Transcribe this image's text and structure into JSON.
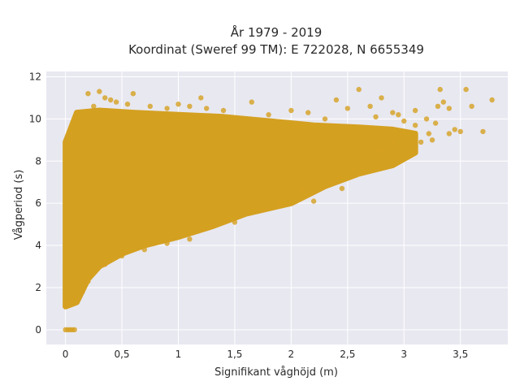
{
  "chart_data": {
    "type": "scatter",
    "title_lines": [
      "År 1979 - 2019",
      "Koordinat (Sweref 99 TM): E 722028, N 6655349"
    ],
    "xlabel": "Signifikant våghöjd (m)",
    "ylabel": "Vågperiod (s)",
    "xlim": [
      -0.17,
      3.92
    ],
    "ylim": [
      -0.7,
      12.25
    ],
    "x_ticks": [
      {
        "value": 0,
        "label": "0"
      },
      {
        "value": 0.5,
        "label": "0,5"
      },
      {
        "value": 1,
        "label": "1"
      },
      {
        "value": 1.5,
        "label": "1,5"
      },
      {
        "value": 2,
        "label": "2"
      },
      {
        "value": 2.5,
        "label": "2,5"
      },
      {
        "value": 3,
        "label": "3"
      },
      {
        "value": 3.5,
        "label": "3,5"
      }
    ],
    "y_ticks": [
      {
        "value": 0,
        "label": "0"
      },
      {
        "value": 2,
        "label": "2"
      },
      {
        "value": 4,
        "label": "4"
      },
      {
        "value": 6,
        "label": "6"
      },
      {
        "value": 8,
        "label": "8"
      },
      {
        "value": 10,
        "label": "10"
      },
      {
        "value": 12,
        "label": "12"
      }
    ],
    "grid": true,
    "colors": {
      "marker": "#d4a020",
      "plot_bg": "#e8e8f1",
      "grid": "#ffffff"
    },
    "density_region": {
      "comment_free": true,
      "lower_bound": [
        [
          0.0,
          1.1
        ],
        [
          0.1,
          1.3
        ],
        [
          0.2,
          2.4
        ],
        [
          0.3,
          3.0
        ],
        [
          0.5,
          3.6
        ],
        [
          0.7,
          4.0
        ],
        [
          1.0,
          4.4
        ],
        [
          1.3,
          4.9
        ],
        [
          1.6,
          5.5
        ],
        [
          2.0,
          6.0
        ],
        [
          2.3,
          6.8
        ],
        [
          2.6,
          7.4
        ],
        [
          2.9,
          7.8
        ],
        [
          3.1,
          8.4
        ]
      ],
      "upper_bound": [
        [
          0.0,
          8.9
        ],
        [
          0.05,
          9.6
        ],
        [
          0.1,
          10.3
        ],
        [
          0.3,
          10.4
        ],
        [
          0.6,
          10.3
        ],
        [
          1.0,
          10.2
        ],
        [
          1.4,
          10.1
        ],
        [
          1.8,
          9.9
        ],
        [
          2.2,
          9.7
        ],
        [
          2.6,
          9.6
        ],
        [
          2.9,
          9.5
        ],
        [
          3.1,
          9.3
        ]
      ]
    },
    "points": [
      [
        0.0,
        0.0
      ],
      [
        0.02,
        0.0
      ],
      [
        0.04,
        0.0
      ],
      [
        0.06,
        0.0
      ],
      [
        0.08,
        0.0
      ],
      [
        0.0,
        1.2
      ],
      [
        0.03,
        1.15
      ],
      [
        0.06,
        1.3
      ],
      [
        0.1,
        1.4
      ],
      [
        0.15,
        1.8
      ],
      [
        0.2,
        2.3
      ],
      [
        0.25,
        2.7
      ],
      [
        0.05,
        8.8
      ],
      [
        0.04,
        9.4
      ],
      [
        0.08,
        10.0
      ],
      [
        0.2,
        11.2
      ],
      [
        0.25,
        10.6
      ],
      [
        0.35,
        11.0
      ],
      [
        0.3,
        11.3
      ],
      [
        0.4,
        10.9
      ],
      [
        0.6,
        11.2
      ],
      [
        0.55,
        10.7
      ],
      [
        0.75,
        10.6
      ],
      [
        0.9,
        10.5
      ],
      [
        1.0,
        10.7
      ],
      [
        1.1,
        10.6
      ],
      [
        1.25,
        10.5
      ],
      [
        1.4,
        10.4
      ],
      [
        1.65,
        10.8
      ],
      [
        1.8,
        10.2
      ],
      [
        2.0,
        10.4
      ],
      [
        2.15,
        10.3
      ],
      [
        2.3,
        10.0
      ],
      [
        2.4,
        10.9
      ],
      [
        2.5,
        10.5
      ],
      [
        2.6,
        11.4
      ],
      [
        2.7,
        10.6
      ],
      [
        2.75,
        10.1
      ],
      [
        2.8,
        11.0
      ],
      [
        2.9,
        10.3
      ],
      [
        2.95,
        10.2
      ],
      [
        3.0,
        9.9
      ],
      [
        3.1,
        9.7
      ],
      [
        3.1,
        10.4
      ],
      [
        3.15,
        8.9
      ],
      [
        3.2,
        10.0
      ],
      [
        3.25,
        9.0
      ],
      [
        3.3,
        10.6
      ],
      [
        3.35,
        10.8
      ],
      [
        3.4,
        10.5
      ],
      [
        3.45,
        9.5
      ],
      [
        3.5,
        9.4
      ],
      [
        3.55,
        11.4
      ],
      [
        3.6,
        10.6
      ],
      [
        3.7,
        9.4
      ],
      [
        3.78,
        10.9
      ],
      [
        3.32,
        11.4
      ],
      [
        3.28,
        9.8
      ],
      [
        3.22,
        9.3
      ],
      [
        3.4,
        9.3
      ],
      [
        3.0,
        9.0
      ],
      [
        2.9,
        8.9
      ],
      [
        2.8,
        8.5
      ],
      [
        2.6,
        8.1
      ],
      [
        2.55,
        7.6
      ],
      [
        2.45,
        6.7
      ],
      [
        2.35,
        7.0
      ],
      [
        2.2,
        6.1
      ],
      [
        2.1,
        6.6
      ],
      [
        1.9,
        6.0
      ],
      [
        1.7,
        5.7
      ],
      [
        1.5,
        5.1
      ],
      [
        1.3,
        4.9
      ],
      [
        1.1,
        4.3
      ],
      [
        0.9,
        4.1
      ],
      [
        0.7,
        3.8
      ],
      [
        0.5,
        3.5
      ],
      [
        0.35,
        3.1
      ],
      [
        1.2,
        11.0
      ],
      [
        0.45,
        10.8
      ]
    ]
  }
}
